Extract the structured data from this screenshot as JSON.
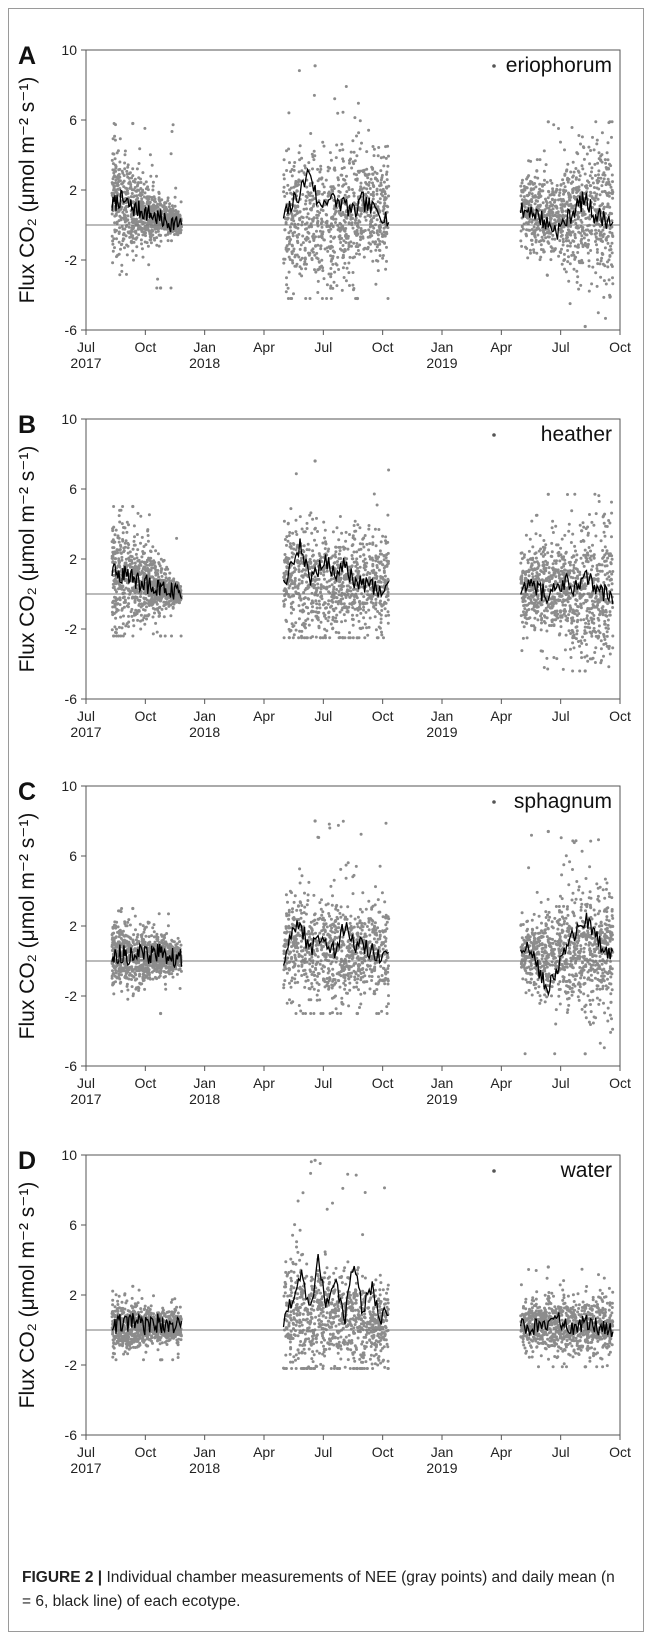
{
  "figure": {
    "caption_label": "FIGURE 2 |",
    "caption_text": " Individual chamber measurements of NEE (gray points) and daily mean (n = 6, black line) of each ecotype."
  },
  "chart_data": [
    {
      "type": "scatter",
      "panel": "A",
      "legend": "eriophorum",
      "legend_position": "top-right",
      "ylabel": "Flux CO₂ (μmol m⁻² s⁻¹)",
      "ylim": [
        -6,
        10
      ],
      "yticks": [
        -6,
        -2,
        2,
        6,
        10
      ],
      "xlim": [
        "2017-07-01",
        "2019-10-01"
      ],
      "xticks": [
        "Jul\n2017",
        "Oct",
        "Jan\n2018",
        "Apr",
        "Jul",
        "Oct",
        "Jan\n2019",
        "Apr",
        "Jul",
        "Oct"
      ],
      "reference_line": 0,
      "series": [
        {
          "name": "chamber measurements",
          "color": "#8c8c8c",
          "segments": [
            {
              "start": "2017-08-10",
              "end": "2017-11-25",
              "center_start": 1.4,
              "center_end": 0.0,
              "spread_start": 2.2,
              "spread_end": 0.3,
              "ymax": 5.8,
              "ymin": -3.6
            },
            {
              "start": "2018-05-01",
              "end": "2018-10-10",
              "center_start": 0.3,
              "center_end": 0.8,
              "spread_start": 2.6,
              "spread_end": 2.2,
              "ymax": 9.1,
              "ymin": -4.2
            },
            {
              "start": "2019-05-01",
              "end": "2019-09-20",
              "center_start": 0.8,
              "center_end": 0.4,
              "spread_start": 1.2,
              "spread_end": 3.0,
              "ymax": 5.9,
              "ymin": -5.8
            }
          ]
        },
        {
          "name": "daily mean",
          "color": "#000000",
          "segments": [
            {
              "start": "2017-08-10",
              "end": "2017-11-25",
              "y": [
                1.1,
                1.5,
                1.2,
                0.9,
                0.8,
                0.6,
                0.4,
                0.2,
                0.1,
                0.0
              ]
            },
            {
              "start": "2018-05-01",
              "end": "2018-10-10",
              "y": [
                0.4,
                1.2,
                2.0,
                3.2,
                1.0,
                1.6,
                1.3,
                1.2,
                0.6,
                1.4,
                0.9,
                0.8,
                0.3
              ]
            },
            {
              "start": "2019-05-01",
              "end": "2019-09-20",
              "y": [
                0.7,
                0.9,
                0.5,
                0.0,
                -0.3,
                0.3,
                1.0,
                1.5,
                0.6,
                0.4,
                0.1
              ]
            }
          ]
        }
      ]
    },
    {
      "type": "scatter",
      "panel": "B",
      "legend": "heather",
      "legend_position": "top-right",
      "ylabel": "Flux CO₂ (μmol m⁻² s⁻¹)",
      "ylim": [
        -6,
        10
      ],
      "yticks": [
        -6,
        -2,
        2,
        6,
        10
      ],
      "xlim": [
        "2017-07-01",
        "2019-10-01"
      ],
      "xticks": [
        "Jul\n2017",
        "Oct",
        "Jan\n2018",
        "Apr",
        "Jul",
        "Oct",
        "Jan\n2019",
        "Apr",
        "Jul",
        "Oct"
      ],
      "reference_line": 0,
      "series": [
        {
          "name": "chamber measurements",
          "color": "#8c8c8c",
          "segments": [
            {
              "start": "2017-08-10",
              "end": "2017-11-25",
              "center_start": 1.2,
              "center_end": 0.0,
              "spread_start": 2.4,
              "spread_end": 0.3,
              "ymax": 5.0,
              "ymin": -2.4
            },
            {
              "start": "2018-05-01",
              "end": "2018-10-10",
              "center_start": 1.0,
              "center_end": 0.5,
              "spread_start": 2.2,
              "spread_end": 1.8,
              "ymax": 7.6,
              "ymin": -2.5
            },
            {
              "start": "2019-05-01",
              "end": "2019-09-20",
              "center_start": 0.5,
              "center_end": 0.3,
              "spread_start": 1.6,
              "spread_end": 2.6,
              "ymax": 5.7,
              "ymin": -4.4
            }
          ]
        },
        {
          "name": "daily mean",
          "color": "#000000",
          "segments": [
            {
              "start": "2017-08-10",
              "end": "2017-11-25",
              "y": [
                1.3,
                1.2,
                1.0,
                0.8,
                0.6,
                0.5,
                0.3,
                0.2,
                0.1,
                0.0
              ]
            },
            {
              "start": "2018-05-01",
              "end": "2018-10-10",
              "y": [
                0.5,
                1.6,
                2.8,
                0.8,
                1.5,
                1.9,
                1.0,
                1.6,
                0.8,
                0.6,
                0.4,
                0.3,
                0.2
              ]
            },
            {
              "start": "2019-05-01",
              "end": "2019-09-20",
              "y": [
                0.4,
                0.8,
                0.2,
                0.0,
                0.5,
                0.7,
                0.3,
                0.9,
                0.6,
                0.0,
                -0.2
              ]
            }
          ]
        }
      ]
    },
    {
      "type": "scatter",
      "panel": "C",
      "legend": "sphagnum",
      "legend_position": "top-right",
      "ylabel": "Flux CO₂ (μmol m⁻² s⁻¹)",
      "ylim": [
        -6,
        10
      ],
      "yticks": [
        -6,
        -2,
        2,
        6,
        10
      ],
      "xlim": [
        "2017-07-01",
        "2019-10-01"
      ],
      "xticks": [
        "Jul\n2017",
        "Oct",
        "Jan\n2018",
        "Apr",
        "Jul",
        "Oct",
        "Jan\n2019",
        "Apr",
        "Jul",
        "Oct"
      ],
      "reference_line": 0,
      "series": [
        {
          "name": "chamber measurements",
          "color": "#8c8c8c",
          "segments": [
            {
              "start": "2017-08-10",
              "end": "2017-11-25",
              "center_start": 0.3,
              "center_end": 0.2,
              "spread_start": 1.4,
              "spread_end": 0.5,
              "ymax": 3.0,
              "ymin": -3.0
            },
            {
              "start": "2018-05-01",
              "end": "2018-10-10",
              "center_start": 1.0,
              "center_end": 0.4,
              "spread_start": 2.2,
              "spread_end": 1.8,
              "ymax": 8.0,
              "ymin": -3.0
            },
            {
              "start": "2019-05-01",
              "end": "2019-09-20",
              "center_start": 0.3,
              "center_end": 0.7,
              "spread_start": 1.2,
              "spread_end": 2.8,
              "ymax": 7.4,
              "ymin": -5.3
            }
          ]
        },
        {
          "name": "daily mean",
          "color": "#000000",
          "segments": [
            {
              "start": "2017-08-10",
              "end": "2017-11-25",
              "y": [
                0.2,
                0.4,
                0.3,
                0.5,
                0.4,
                0.3,
                0.5,
                0.3,
                0.2,
                0.2
              ]
            },
            {
              "start": "2018-05-01",
              "end": "2018-10-10",
              "y": [
                0.2,
                1.4,
                2.1,
                0.4,
                1.6,
                1.2,
                0.6,
                2.0,
                1.0,
                0.9,
                0.6,
                0.3,
                0.4
              ]
            },
            {
              "start": "2019-05-01",
              "end": "2019-09-20",
              "y": [
                0.4,
                0.6,
                -0.6,
                -1.4,
                -0.3,
                0.8,
                1.6,
                2.4,
                1.5,
                0.6,
                0.3
              ]
            }
          ]
        }
      ]
    },
    {
      "type": "scatter",
      "panel": "D",
      "legend": "water",
      "legend_position": "top-right",
      "ylabel": "Flux CO₂ (μmol m⁻² s⁻¹)",
      "ylim": [
        -6,
        10
      ],
      "yticks": [
        -6,
        -2,
        2,
        6,
        10
      ],
      "xlim": [
        "2017-07-01",
        "2019-10-01"
      ],
      "xticks": [
        "Jul\n2017",
        "Oct",
        "Jan\n2018",
        "Apr",
        "Jul",
        "Oct",
        "Jan\n2019",
        "Apr",
        "Jul",
        "Oct"
      ],
      "reference_line": 0,
      "series": [
        {
          "name": "chamber measurements",
          "color": "#8c8c8c",
          "segments": [
            {
              "start": "2017-08-10",
              "end": "2017-11-25",
              "center_start": 0.2,
              "center_end": 0.2,
              "spread_start": 1.0,
              "spread_end": 0.5,
              "ymax": 2.5,
              "ymin": -1.7
            },
            {
              "start": "2018-05-01",
              "end": "2018-10-10",
              "center_start": 1.2,
              "center_end": 0.4,
              "spread_start": 2.4,
              "spread_end": 1.6,
              "ymax": 9.7,
              "ymin": -2.2
            },
            {
              "start": "2019-05-01",
              "end": "2019-09-20",
              "center_start": 0.3,
              "center_end": 0.2,
              "spread_start": 0.9,
              "spread_end": 1.2,
              "ymax": 3.6,
              "ymin": -2.1
            }
          ]
        },
        {
          "name": "daily mean",
          "color": "#000000",
          "segments": [
            {
              "start": "2017-08-10",
              "end": "2017-11-25",
              "y": [
                0.2,
                0.4,
                0.3,
                0.5,
                0.2,
                0.3,
                0.4,
                0.2,
                0.3,
                0.2
              ]
            },
            {
              "start": "2018-05-01",
              "end": "2018-10-10",
              "y": [
                0.3,
                1.8,
                3.2,
                0.8,
                4.2,
                1.2,
                2.8,
                0.6,
                3.9,
                1.0,
                2.6,
                0.4,
                1.2
              ]
            },
            {
              "start": "2019-05-01",
              "end": "2019-09-20",
              "y": [
                0.4,
                -0.2,
                0.5,
                0.1,
                0.6,
                0.3,
                0.0,
                0.4,
                0.2,
                0.3,
                0.1
              ]
            }
          ]
        }
      ]
    }
  ]
}
